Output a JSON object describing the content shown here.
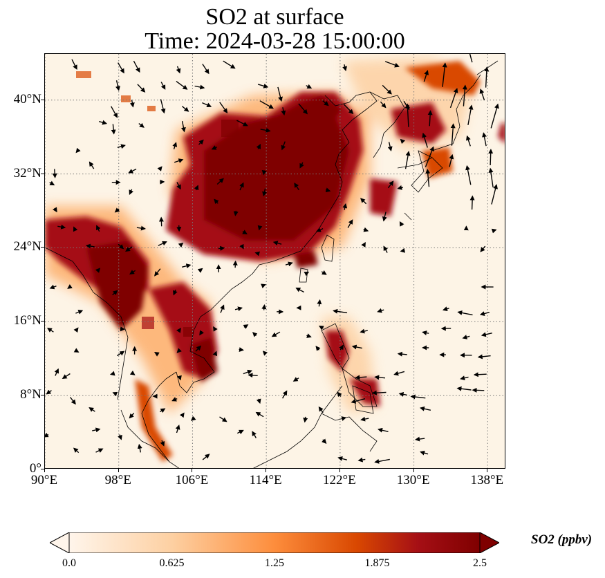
{
  "title": {
    "line1": "SO2 at surface",
    "line2": "Time: 2024-03-28 15:00:00"
  },
  "map": {
    "type": "filled-contour-map-with-wind-vectors",
    "variable": "SO2",
    "level": "surface",
    "lon_range": [
      90,
      140
    ],
    "lat_range": [
      0,
      45
    ],
    "lat_ticks": [
      "0°",
      "8°N",
      "16°N",
      "24°N",
      "32°N",
      "40°N"
    ],
    "lat_tick_values": [
      0,
      8,
      16,
      24,
      32,
      40
    ],
    "lon_ticks": [
      "90°E",
      "98°E",
      "106°E",
      "114°E",
      "122°E",
      "130°E",
      "138°E"
    ],
    "lon_tick_values": [
      90,
      98,
      106,
      114,
      122,
      130,
      138
    ],
    "gridlines": "dotted gray",
    "coastlines": true
  },
  "colorbar": {
    "label": "SO2 (ppbv)",
    "ticks": [
      "0.0",
      "0.625",
      "1.25",
      "1.875",
      "2.5"
    ],
    "range": [
      0,
      2.5
    ],
    "extend": "both",
    "colors": [
      "#fff5eb",
      "#fdd0a2",
      "#fd8d3c",
      "#d94801",
      "#a50f15",
      "#7f0000"
    ]
  }
}
